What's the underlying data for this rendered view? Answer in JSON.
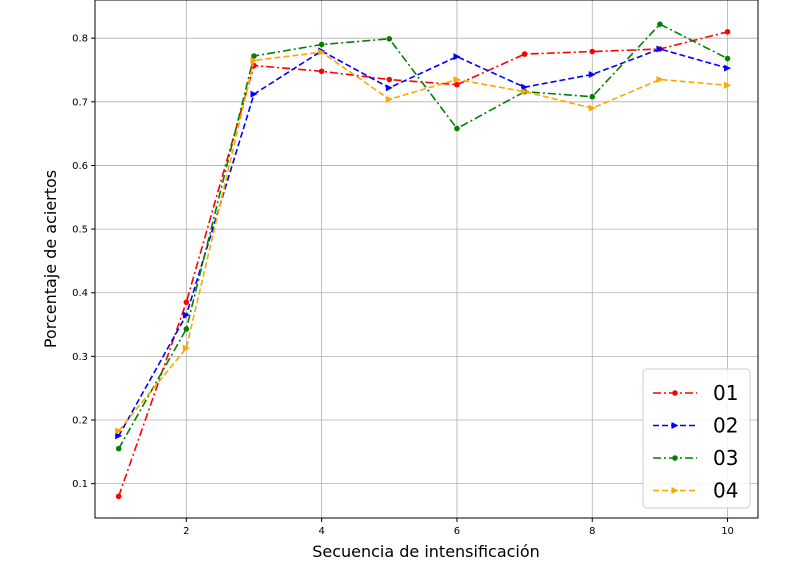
{
  "chart_data": {
    "type": "line",
    "title": "",
    "xlabel": "Secuencia de intensificación",
    "ylabel": "Porcentaje de aciertos",
    "x": [
      1,
      2,
      3,
      4,
      5,
      6,
      7,
      8,
      9,
      10
    ],
    "xlim": [
      0.65,
      10.45
    ],
    "ylim": [
      0.046,
      0.86
    ],
    "xticks": [
      2,
      4,
      6,
      8,
      10
    ],
    "yticks": [
      0.1,
      0.2,
      0.3,
      0.4,
      0.5,
      0.6,
      0.7,
      0.8
    ],
    "xtick_labels": [
      "2",
      "4",
      "6",
      "8",
      "10"
    ],
    "ytick_labels": [
      "0.1",
      "0.2",
      "0.3",
      "0.4",
      "0.5",
      "0.6",
      "0.7",
      "0.8"
    ],
    "grid": true,
    "legend_position": "lower-right",
    "series": [
      {
        "name": "01",
        "color": "#ff0000",
        "dash": "dashdot",
        "marker": "circle",
        "values": [
          0.08,
          0.385,
          0.757,
          0.748,
          0.735,
          0.727,
          0.775,
          0.779,
          0.783,
          0.81
        ]
      },
      {
        "name": "02",
        "color": "#0000ff",
        "dash": "dashed",
        "marker": "triangle-right",
        "values": [
          0.175,
          0.365,
          0.712,
          0.78,
          0.722,
          0.771,
          0.723,
          0.743,
          0.783,
          0.753
        ]
      },
      {
        "name": "03",
        "color": "#008000",
        "dash": "dashdot",
        "marker": "circle",
        "values": [
          0.155,
          0.343,
          0.772,
          0.79,
          0.799,
          0.658,
          0.716,
          0.708,
          0.822,
          0.768
        ]
      },
      {
        "name": "04",
        "color": "#ffa500",
        "dash": "dashed",
        "marker": "triangle-right",
        "values": [
          0.183,
          0.313,
          0.765,
          0.778,
          0.704,
          0.735,
          0.716,
          0.69,
          0.735,
          0.726
        ]
      }
    ]
  }
}
